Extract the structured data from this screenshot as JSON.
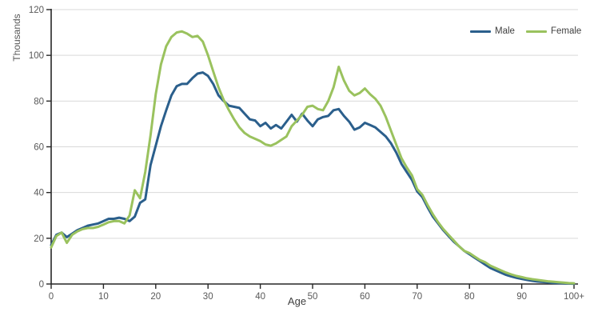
{
  "chart_data": {
    "type": "line",
    "title": "",
    "xlabel": "Age",
    "ylabel": "Thousands",
    "ylim": [
      0,
      120
    ],
    "yticks": [
      0,
      20,
      40,
      60,
      80,
      100,
      120
    ],
    "xticks": [
      0,
      10,
      20,
      30,
      40,
      50,
      60,
      70,
      80,
      90,
      100
    ],
    "xtick_labels": [
      "0",
      "10",
      "20",
      "30",
      "40",
      "50",
      "60",
      "70",
      "80",
      "90",
      "100+"
    ],
    "grid": "horizontal",
    "legend_position": "top-right",
    "x": [
      0,
      1,
      2,
      3,
      4,
      5,
      6,
      7,
      8,
      9,
      10,
      11,
      12,
      13,
      14,
      15,
      16,
      17,
      18,
      19,
      20,
      21,
      22,
      23,
      24,
      25,
      26,
      27,
      28,
      29,
      30,
      31,
      32,
      33,
      34,
      35,
      36,
      37,
      38,
      39,
      40,
      41,
      42,
      43,
      44,
      45,
      46,
      47,
      48,
      49,
      50,
      51,
      52,
      53,
      54,
      55,
      56,
      57,
      58,
      59,
      60,
      61,
      62,
      63,
      64,
      65,
      66,
      67,
      68,
      69,
      70,
      71,
      72,
      73,
      74,
      75,
      76,
      77,
      78,
      79,
      80,
      81,
      82,
      83,
      84,
      85,
      86,
      87,
      88,
      89,
      90,
      91,
      92,
      93,
      94,
      95,
      96,
      97,
      98,
      99,
      100
    ],
    "series": [
      {
        "name": "Male",
        "color": "#2b5f8c",
        "values": [
          17,
          21.5,
          22.5,
          20.5,
          22,
          23.5,
          24.5,
          25.5,
          26,
          26.5,
          27.5,
          28.5,
          28.5,
          29,
          28.5,
          27.5,
          29.5,
          35.5,
          37,
          52,
          60.5,
          69,
          76,
          82.5,
          86.5,
          87.5,
          87.5,
          90,
          92,
          92.5,
          91,
          87.5,
          82.5,
          80,
          78,
          77.5,
          77,
          74.5,
          72,
          71.5,
          69,
          70.5,
          68,
          69.5,
          68,
          71,
          74,
          71,
          74.5,
          71.5,
          69,
          72,
          73,
          73.5,
          76,
          76.5,
          73.5,
          71,
          67.5,
          68.5,
          70.5,
          69.5,
          68.5,
          66.5,
          64.5,
          61.5,
          57.5,
          52.5,
          49,
          45.5,
          40.5,
          38,
          33.5,
          29.5,
          26.5,
          23.5,
          21,
          18.5,
          16.5,
          14.5,
          13,
          11.5,
          10,
          8.5,
          7,
          6,
          5,
          4,
          3.3,
          2.7,
          2.2,
          1.8,
          1.4,
          1.1,
          0.9,
          0.7,
          0.5,
          0.4,
          0.3,
          0.2,
          0.1
        ]
      },
      {
        "name": "Female",
        "color": "#9ac25e",
        "values": [
          16,
          21,
          22.5,
          18,
          21.5,
          23,
          24,
          24.5,
          24.5,
          25,
          26,
          27,
          27.5,
          27.5,
          26.5,
          30,
          41,
          37.5,
          49,
          65,
          83,
          96,
          104,
          108,
          110,
          110.5,
          109.5,
          108,
          108.5,
          106,
          100,
          93,
          86,
          80.5,
          76,
          72,
          68.5,
          66,
          64.5,
          63.5,
          62.5,
          61,
          60.5,
          61.5,
          63,
          64.5,
          69,
          71.5,
          74,
          77.5,
          78,
          76.5,
          76,
          80,
          86,
          95,
          89,
          84.5,
          82.5,
          83.5,
          85.5,
          83,
          81,
          78,
          73,
          67,
          61,
          55,
          51,
          47.5,
          41.5,
          39,
          34.5,
          30.5,
          27,
          24,
          21.5,
          19,
          16.5,
          14.5,
          13.5,
          12,
          10.5,
          9.5,
          8,
          7,
          6,
          5,
          4.2,
          3.5,
          3,
          2.5,
          2.1,
          1.8,
          1.5,
          1.2,
          1,
          0.8,
          0.6,
          0.4,
          0.3
        ]
      }
    ],
    "colors": {
      "gridline": "#d9d9d9",
      "axis": "#262626",
      "tick_label": "#595959"
    }
  }
}
